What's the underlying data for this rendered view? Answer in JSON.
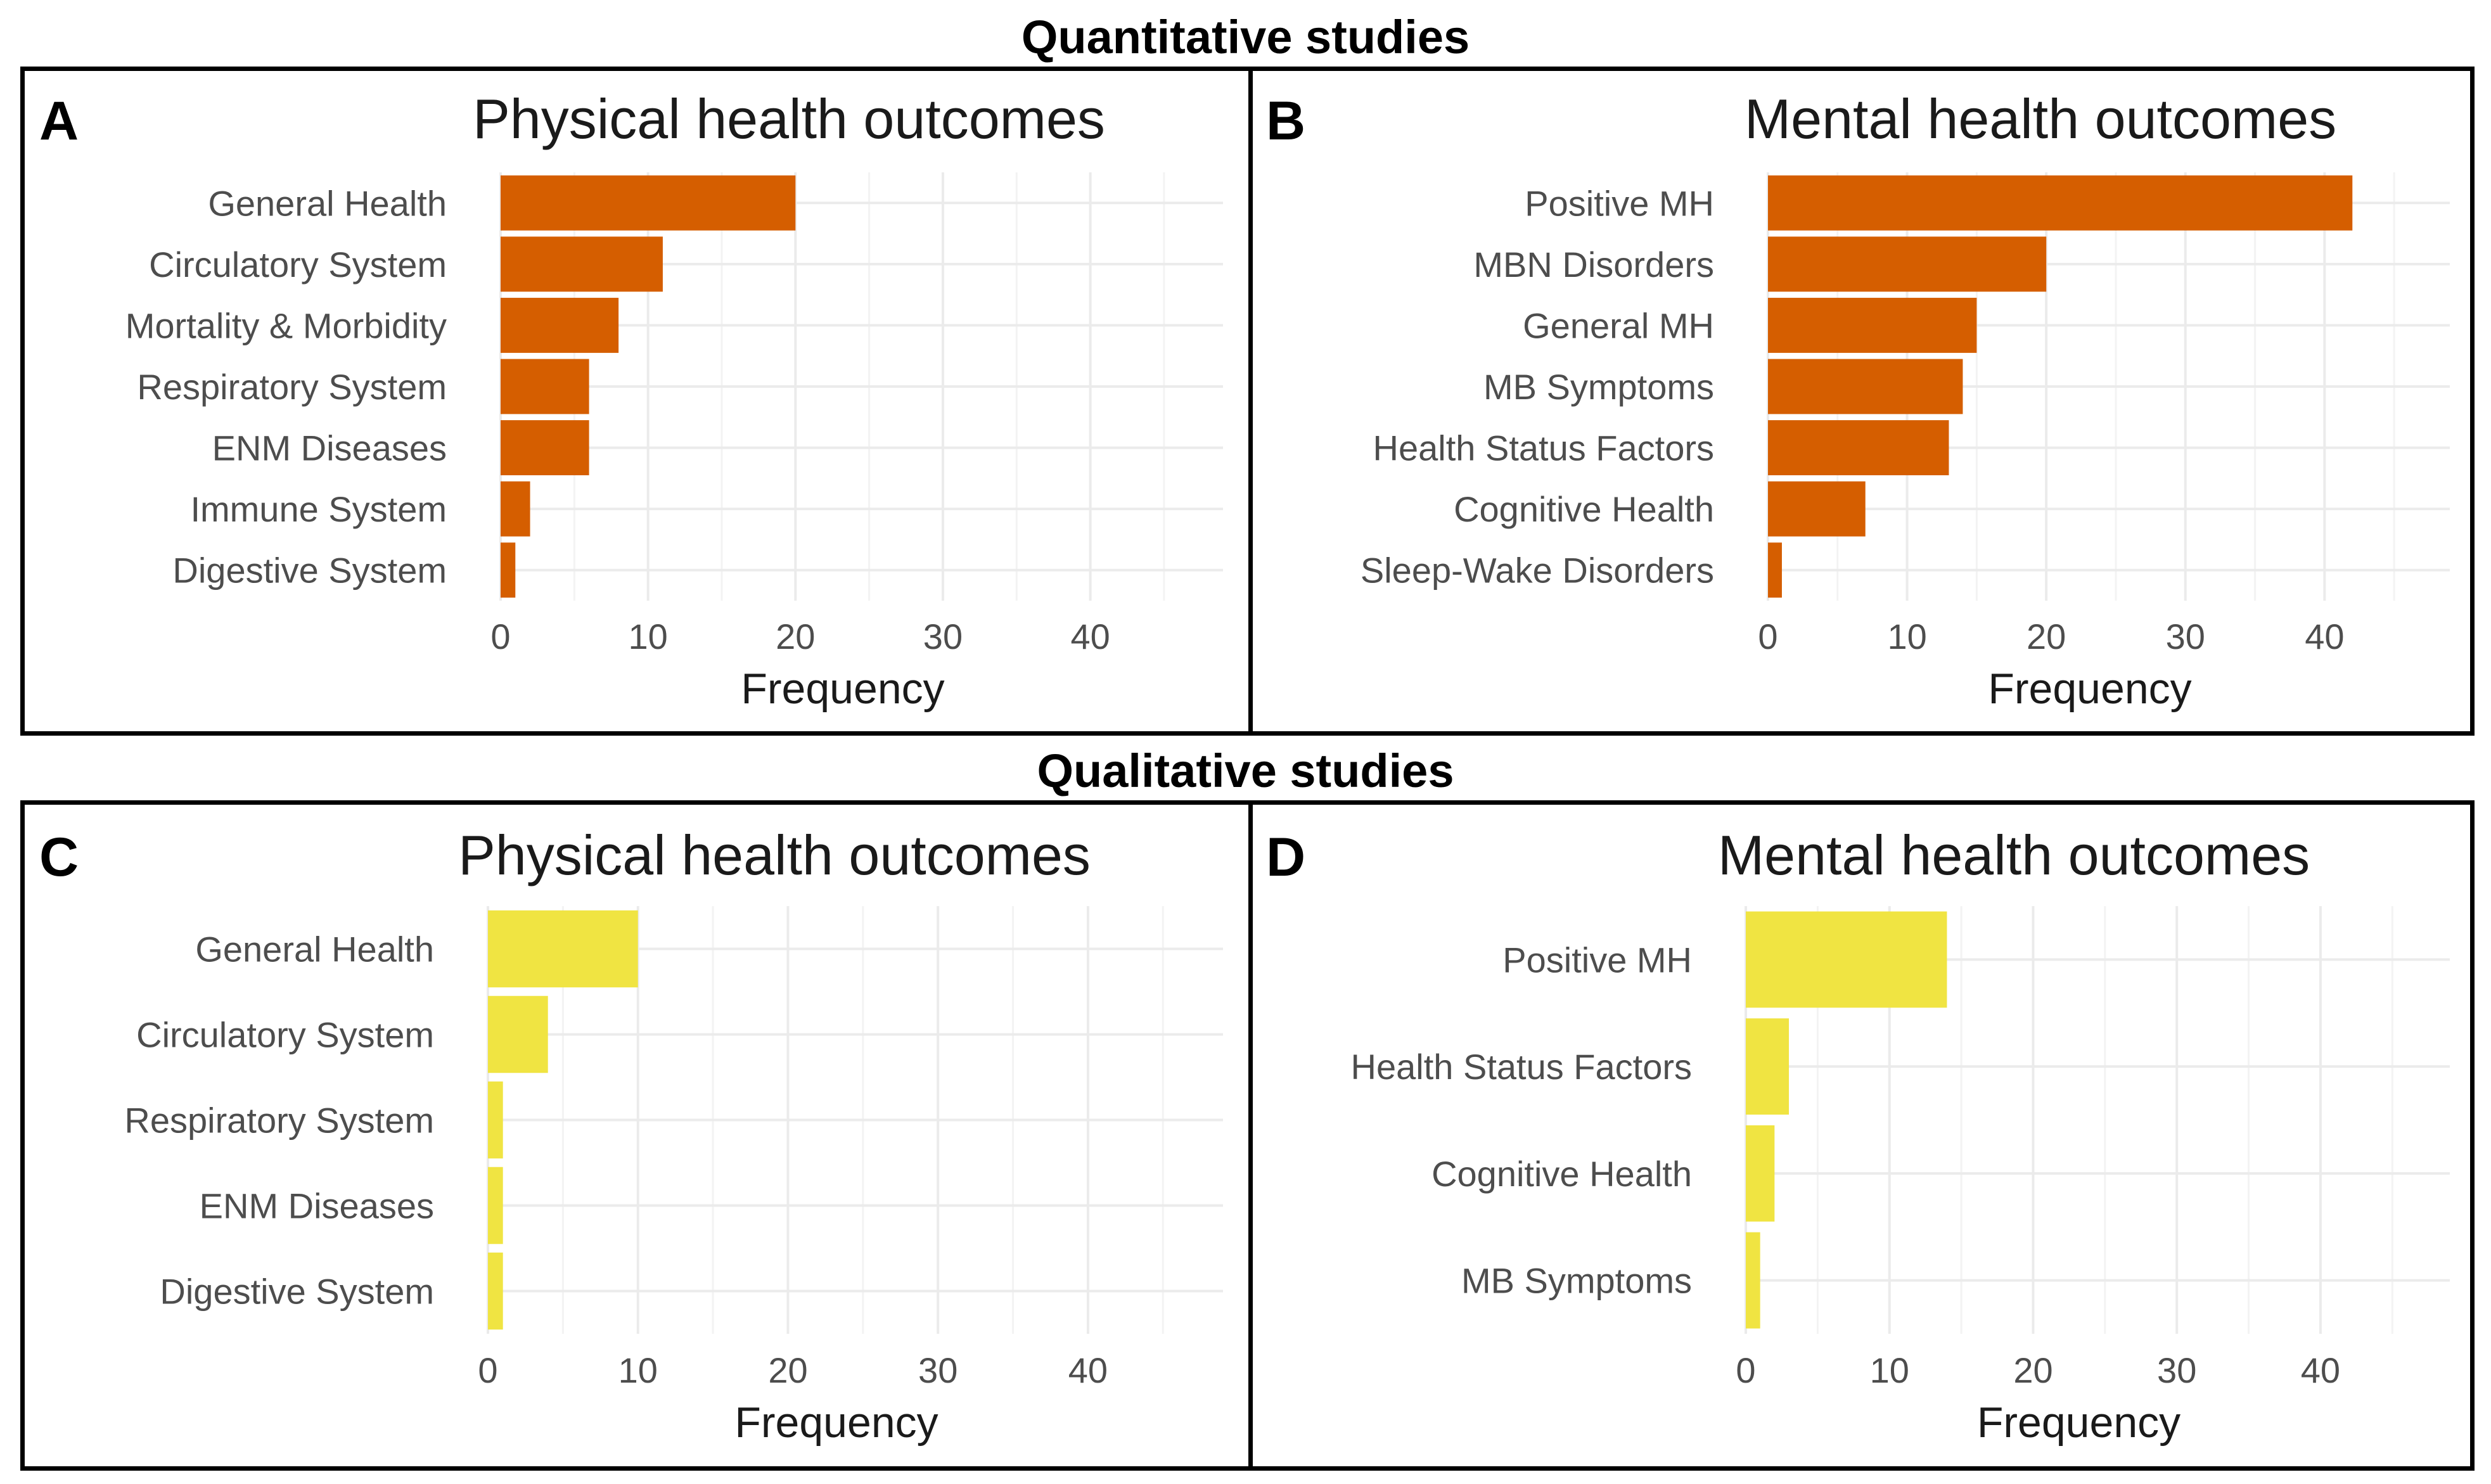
{
  "sections": {
    "top": "Quantitative studies",
    "bottom": "Qualitative studies"
  },
  "chart_data": [
    {
      "panel": "A",
      "type": "bar",
      "orientation": "horizontal",
      "title": "Physical health outcomes",
      "categories": [
        "General Health",
        "Circulatory System",
        "Mortality & Morbidity",
        "Respiratory System",
        "ENM Diseases",
        "Immune System",
        "Digestive System"
      ],
      "values": [
        20,
        11,
        8,
        6,
        6,
        2,
        1
      ],
      "xlabel": "Frequency",
      "ylabel": "",
      "xlim": [
        0,
        49
      ],
      "xticks": [
        0,
        10,
        20,
        30,
        40
      ],
      "bar_color": "#D55E00",
      "grid": true
    },
    {
      "panel": "B",
      "type": "bar",
      "orientation": "horizontal",
      "title": "Mental health outcomes",
      "categories": [
        "Positive MH",
        "MBN Disorders",
        "General MH",
        "MB Symptoms",
        "Health Status Factors",
        "Cognitive Health",
        "Sleep-Wake Disorders"
      ],
      "values": [
        42,
        20,
        15,
        14,
        13,
        7,
        1
      ],
      "xlabel": "Frequency",
      "ylabel": "",
      "xlim": [
        0,
        49
      ],
      "xticks": [
        0,
        10,
        20,
        30,
        40
      ],
      "bar_color": "#D55E00",
      "grid": true
    },
    {
      "panel": "C",
      "type": "bar",
      "orientation": "horizontal",
      "title": "Physical health outcomes",
      "categories": [
        "General Health",
        "Circulatory System",
        "Respiratory System",
        "ENM Diseases",
        "Digestive System"
      ],
      "values": [
        10,
        4,
        1,
        1,
        1
      ],
      "xlabel": "Frequency",
      "ylabel": "",
      "xlim": [
        0,
        49
      ],
      "xticks": [
        0,
        10,
        20,
        30,
        40
      ],
      "bar_color": "#F0E442",
      "grid": true
    },
    {
      "panel": "D",
      "type": "bar",
      "orientation": "horizontal",
      "title": "Mental health outcomes",
      "categories": [
        "Positive MH",
        "Health Status Factors",
        "Cognitive Health",
        "MB Symptoms"
      ],
      "values": [
        14,
        3,
        2,
        1
      ],
      "xlabel": "Frequency",
      "ylabel": "",
      "xlim": [
        0,
        49
      ],
      "xticks": [
        0,
        10,
        20,
        30,
        40
      ],
      "bar_color": "#F0E442",
      "grid": true
    }
  ]
}
